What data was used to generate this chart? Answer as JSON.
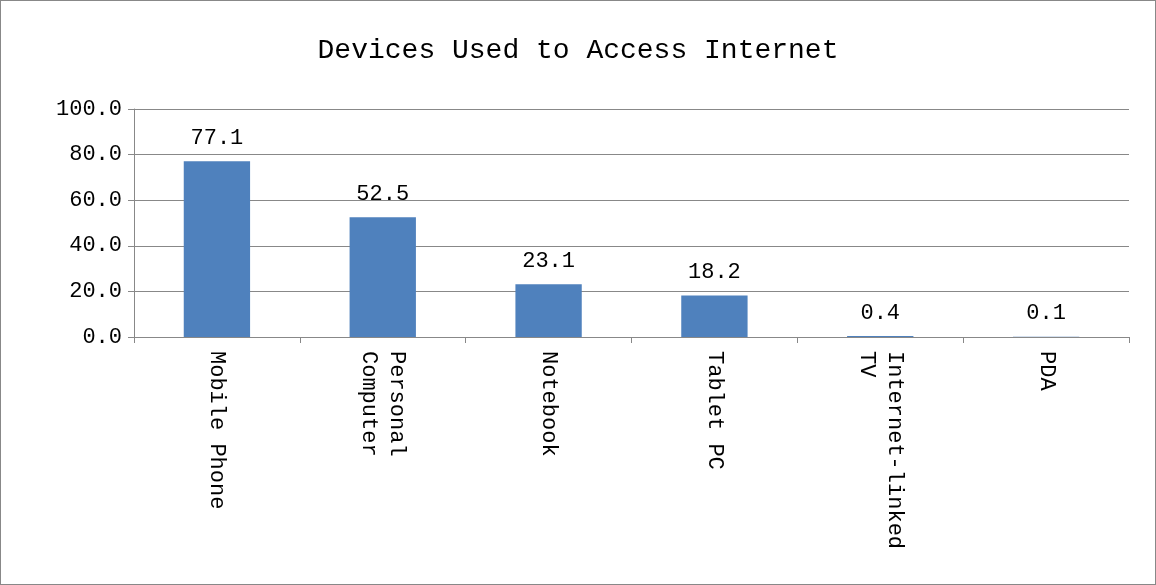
{
  "chart_data": {
    "type": "bar",
    "title": "Devices Used to Access Internet",
    "categories": [
      "Mobile Phone",
      "Personal\nComputer",
      "Notebook",
      "Tablet PC",
      "Internet-linked\nTV",
      "PDA"
    ],
    "values": [
      77.1,
      52.5,
      23.1,
      18.2,
      0.4,
      0.1
    ],
    "color": "#4f81bd",
    "ylim": [
      0,
      100
    ],
    "yticks": [
      {
        "value": 0,
        "label": "0.0"
      },
      {
        "value": 20,
        "label": "20.0"
      },
      {
        "value": 40,
        "label": "40.0"
      },
      {
        "value": 60,
        "label": "60.0"
      },
      {
        "value": 80,
        "label": "80.0"
      },
      {
        "value": 100,
        "label": "100.0"
      }
    ],
    "grid": "y",
    "data_labels": true
  }
}
